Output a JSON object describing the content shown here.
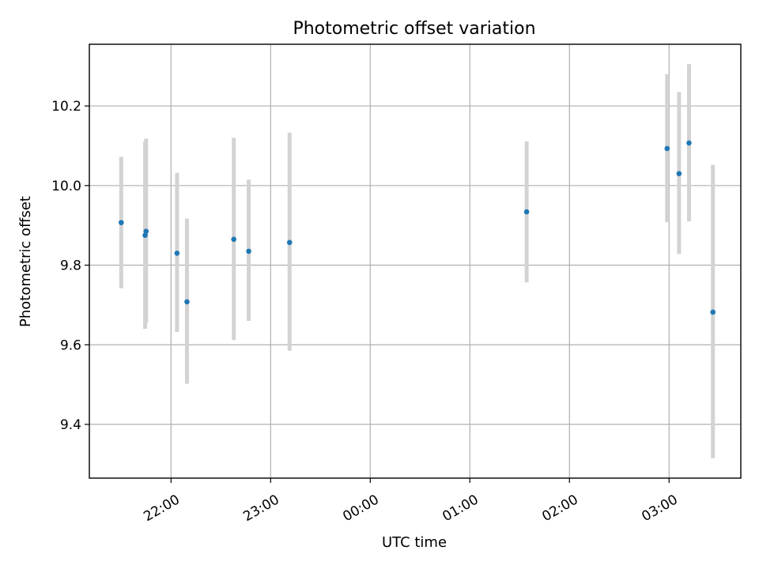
{
  "chart_data": {
    "type": "scatter",
    "title": "Photometric offset variation",
    "xlabel": "UTC time",
    "ylabel": "Photometric offset",
    "x_unit": "hours relative to 00:00 UTC",
    "x_ticks": [
      {
        "value": -2,
        "label": "22:00"
      },
      {
        "value": -1,
        "label": "23:00"
      },
      {
        "value": 0,
        "label": "00:00"
      },
      {
        "value": 1,
        "label": "01:00"
      },
      {
        "value": 2,
        "label": "02:00"
      },
      {
        "value": 3,
        "label": "03:00"
      }
    ],
    "y_ticks": [
      {
        "value": 9.4,
        "label": "9.4"
      },
      {
        "value": 9.6,
        "label": "9.6"
      },
      {
        "value": 9.8,
        "label": "9.8"
      },
      {
        "value": 10.0,
        "label": "10.0"
      },
      {
        "value": 10.2,
        "label": "10.2"
      }
    ],
    "xlim": [
      -2.82,
      3.72
    ],
    "ylim": [
      9.265,
      10.355
    ],
    "grid": true,
    "marker_color": "#1f77b4",
    "errorbar_color": "#d3d3d3",
    "points": [
      {
        "x": -2.5,
        "y": 9.907,
        "ylow": 9.742,
        "yhigh": 10.072
      },
      {
        "x": -2.26,
        "y": 9.875,
        "ylow": 9.64,
        "yhigh": 10.11
      },
      {
        "x": -2.25,
        "y": 9.885,
        "ylow": 9.655,
        "yhigh": 10.118
      },
      {
        "x": -1.94,
        "y": 9.83,
        "ylow": 9.632,
        "yhigh": 10.032
      },
      {
        "x": -1.84,
        "y": 9.708,
        "ylow": 9.502,
        "yhigh": 9.917
      },
      {
        "x": -1.37,
        "y": 9.865,
        "ylow": 9.612,
        "yhigh": 10.12
      },
      {
        "x": -1.22,
        "y": 9.835,
        "ylow": 9.66,
        "yhigh": 10.015
      },
      {
        "x": -0.81,
        "y": 9.857,
        "ylow": 9.585,
        "yhigh": 10.133
      },
      {
        "x": 1.57,
        "y": 9.934,
        "ylow": 9.757,
        "yhigh": 10.111
      },
      {
        "x": 2.98,
        "y": 10.093,
        "ylow": 9.908,
        "yhigh": 10.28
      },
      {
        "x": 3.1,
        "y": 10.03,
        "ylow": 9.828,
        "yhigh": 10.235
      },
      {
        "x": 3.2,
        "y": 10.107,
        "ylow": 9.91,
        "yhigh": 10.305
      },
      {
        "x": 3.44,
        "y": 9.682,
        "ylow": 9.315,
        "yhigh": 10.052
      }
    ]
  }
}
